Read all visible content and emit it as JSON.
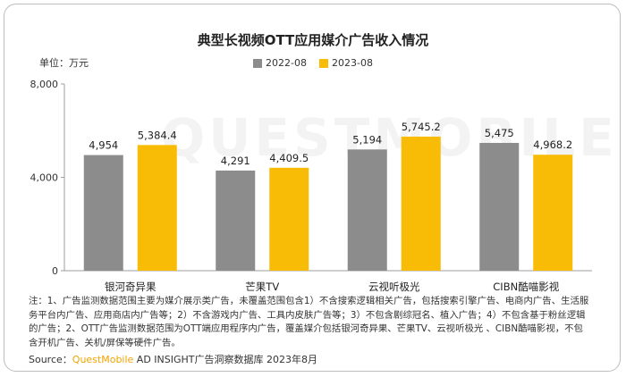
{
  "chart_data": {
    "type": "bar",
    "title": "典型长视频OTT应用媒介广告收入情况",
    "unit_label": "单位：万元",
    "categories": [
      "银河奇异果",
      "芒果TV",
      "云视听极光",
      "CIBN酷喵影视"
    ],
    "series": [
      {
        "name": "2022-08",
        "color": "#8c8c8c",
        "values": [
          4954,
          4291,
          5194,
          5475
        ],
        "labels": [
          "4,954",
          "4,291",
          "5,194",
          "5,475"
        ]
      },
      {
        "name": "2023-08",
        "color": "#f8bb06",
        "values": [
          5384.4,
          4409.5,
          5745.2,
          4968.2
        ],
        "labels": [
          "5,384.4",
          "4,409.5",
          "5,745.2",
          "4,968.2"
        ]
      }
    ],
    "ylim": [
      0,
      8000
    ],
    "yticks": [
      0,
      4000,
      8000
    ],
    "ytick_labels": [
      "0",
      "4,000",
      "8,000"
    ],
    "xlabel": "",
    "ylabel": "",
    "legend_position": "top-center",
    "grid": false
  },
  "note": "注：1、广告监测数据范围主要为媒介展示类广告，未覆盖范围包含1）不含搜索逻辑相关广告，包括搜索引擎广告、电商内广告、生活服务平台内广告、应用商店内广告等；2）不含游戏内广告、工具内皮肤广告等；3）不包含剧综冠名、植入广告；4）不包含基于粉丝逻辑的广告；2、OTT广告监测数据范围为OTT端应用程序内广告，覆盖媒介包括银河奇异果、芒果TV、云视听极光 、CIBN酷喵影视，不包含开机广告、关机/屏保等硬件广告。",
  "source": {
    "prefix": "Source：",
    "brand": "QuestMobile",
    "rest": " AD INSIGHT广告洞察数据库 2023年8月"
  },
  "watermark": "QUESTMOBILE"
}
